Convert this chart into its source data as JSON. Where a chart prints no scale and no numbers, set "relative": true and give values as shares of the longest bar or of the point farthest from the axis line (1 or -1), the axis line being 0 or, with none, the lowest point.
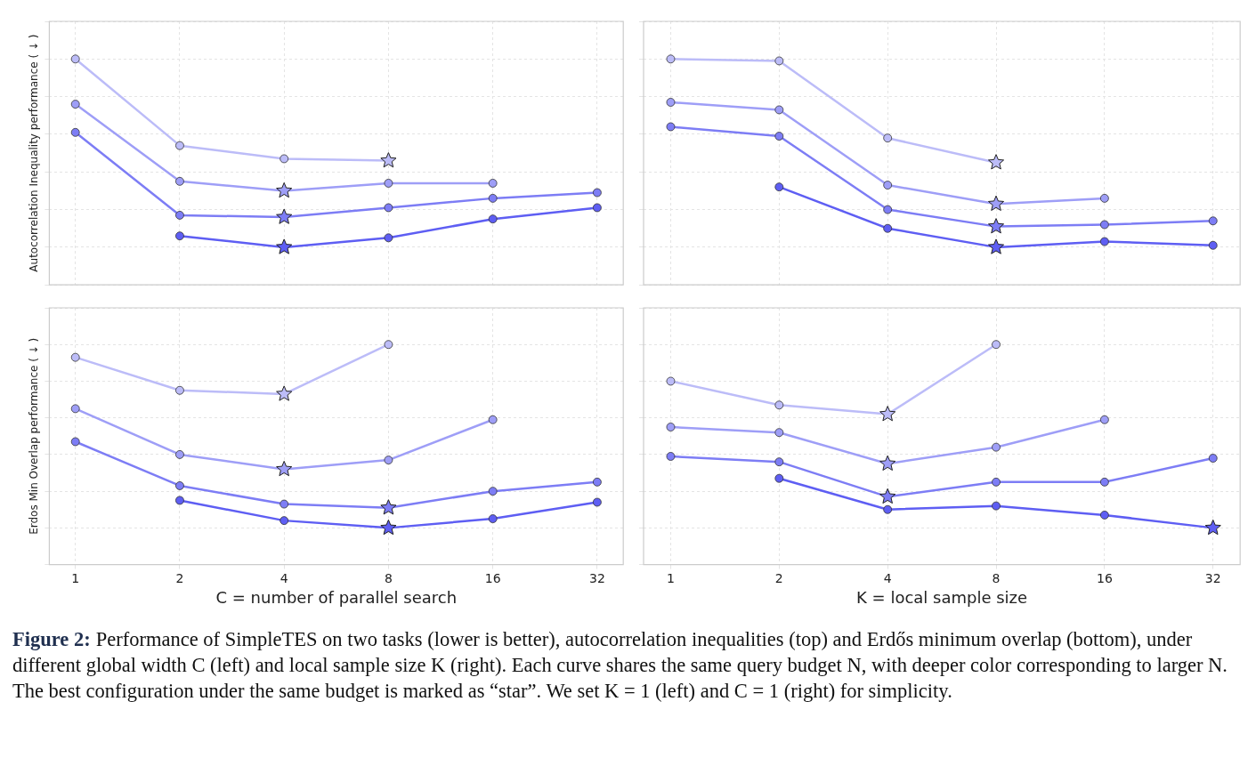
{
  "chart_data": [
    {
      "type": "line",
      "relative": true,
      "ylabel": "Autocorrelation Inequality performance ( ↓ )",
      "categories": [
        "1",
        "2",
        "4",
        "8",
        "16",
        "32"
      ],
      "grid": true,
      "tick_labels": false,
      "series": [
        {
          "color": "#bcbcf8",
          "marker": "circle",
          "values": [
            1,
            0.54,
            0.47,
            0.46,
            null,
            null
          ]
        },
        {
          "color": "#9e9ef7",
          "marker": "circle",
          "values": [
            0.76,
            0.35,
            0.3,
            0.34,
            0.34,
            null
          ]
        },
        {
          "color": "#7d7df5",
          "marker": "circle",
          "values": [
            0.61,
            0.17,
            0.16,
            0.21,
            0.26,
            0.29
          ]
        },
        {
          "color": "#5e5ef3",
          "marker": "circle",
          "values": [
            null,
            0.06,
            0,
            0.05,
            0.15,
            0.21
          ]
        },
        {
          "type": "scatter",
          "marker": "star",
          "x": [
            "8",
            "4",
            "4",
            "4"
          ],
          "colors": [
            "#bcbcf8",
            "#9e9ef7",
            "#7d7df5",
            "#5e5ef3"
          ],
          "values": [
            0.46,
            0.3,
            0.16,
            0
          ]
        }
      ]
    },
    {
      "type": "line",
      "relative": true,
      "categories": [
        "1",
        "2",
        "4",
        "8",
        "16",
        "32"
      ],
      "grid": true,
      "tick_labels": false,
      "series": [
        {
          "color": "#bcbcf8",
          "marker": "circle",
          "values": [
            1,
            0.99,
            0.58,
            0.45,
            null,
            null
          ]
        },
        {
          "color": "#9e9ef7",
          "marker": "circle",
          "values": [
            0.77,
            0.73,
            0.33,
            0.23,
            0.26,
            null
          ]
        },
        {
          "color": "#7d7df5",
          "marker": "circle",
          "values": [
            0.64,
            0.59,
            0.2,
            0.11,
            0.12,
            0.14
          ]
        },
        {
          "color": "#5e5ef3",
          "marker": "circle",
          "values": [
            null,
            0.32,
            0.1,
            0,
            0.03,
            0.01
          ]
        },
        {
          "type": "scatter",
          "marker": "star",
          "x": [
            "8",
            "8",
            "8",
            "8"
          ],
          "colors": [
            "#bcbcf8",
            "#9e9ef7",
            "#7d7df5",
            "#5e5ef3"
          ],
          "values": [
            0.45,
            0.23,
            0.11,
            0
          ]
        }
      ]
    },
    {
      "type": "line",
      "relative": true,
      "ylabel": "Erdos Min Overlap performance ( ↓ )",
      "xlabel": "C = number of parallel search",
      "categories": [
        "1",
        "2",
        "4",
        "8",
        "16",
        "32"
      ],
      "grid": true,
      "tick_labels": "x",
      "series": [
        {
          "color": "#bcbcf8",
          "marker": "circle",
          "values": [
            0.93,
            0.75,
            0.73,
            1,
            null,
            null
          ]
        },
        {
          "color": "#9e9ef7",
          "marker": "circle",
          "values": [
            0.65,
            0.4,
            0.32,
            0.37,
            0.59,
            null
          ]
        },
        {
          "color": "#7d7df5",
          "marker": "circle",
          "values": [
            0.47,
            0.23,
            0.13,
            0.11,
            0.2,
            0.25
          ]
        },
        {
          "color": "#5e5ef3",
          "marker": "circle",
          "values": [
            null,
            0.15,
            0.04,
            0,
            0.05,
            0.14
          ]
        },
        {
          "type": "scatter",
          "marker": "star",
          "x": [
            "4",
            "4",
            "8",
            "8"
          ],
          "colors": [
            "#bcbcf8",
            "#9e9ef7",
            "#7d7df5",
            "#5e5ef3"
          ],
          "values": [
            0.73,
            0.32,
            0.11,
            0
          ]
        }
      ]
    },
    {
      "type": "line",
      "relative": true,
      "xlabel": "K = local sample size",
      "categories": [
        "1",
        "2",
        "4",
        "8",
        "16",
        "32"
      ],
      "grid": true,
      "tick_labels": "x",
      "series": [
        {
          "color": "#bcbcf8",
          "marker": "circle",
          "values": [
            0.8,
            0.67,
            0.62,
            1,
            null,
            null
          ]
        },
        {
          "color": "#9e9ef7",
          "marker": "circle",
          "values": [
            0.55,
            0.52,
            0.35,
            0.44,
            0.59,
            null
          ]
        },
        {
          "color": "#7d7df5",
          "marker": "circle",
          "values": [
            0.39,
            0.36,
            0.17,
            0.25,
            0.25,
            0.38
          ]
        },
        {
          "color": "#5e5ef3",
          "marker": "circle",
          "values": [
            null,
            0.27,
            0.1,
            0.12,
            0.07,
            0
          ]
        },
        {
          "type": "scatter",
          "marker": "star",
          "x": [
            "4",
            "4",
            "4",
            "32"
          ],
          "colors": [
            "#bcbcf8",
            "#9e9ef7",
            "#7d7df5",
            "#5e5ef3"
          ],
          "values": [
            0.62,
            0.35,
            0.17,
            0
          ]
        }
      ],
      "annotations": [
        "Figure 2:",
        "Performance of SimpleTES on two tasks (lower is better), autocorrelation inequalities (top) and Erdős minimum overlap (bottom), under different global width C (left) and local sample size K (right). Each curve shares the same query budget N, with deeper color corresponding to larger N. The best configuration under the same budget is marked as “star”. We set K = 1 (left) and C = 1 (right) for simplicity."
      ]
    }
  ]
}
